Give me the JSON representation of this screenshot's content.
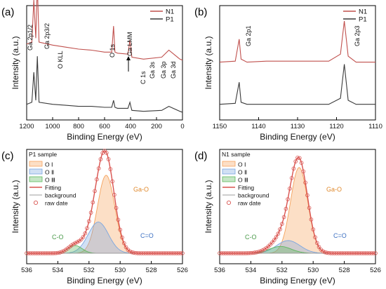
{
  "chart_data": [
    {
      "panel": "(a)",
      "type": "line",
      "xlabel": "Binding Energy (eV)",
      "ylabel": "Intensity (a.u.)",
      "xlim": [
        1200,
        0
      ],
      "x_reversed": true,
      "xticks": [
        1200,
        1000,
        800,
        600,
        400,
        200,
        0
      ],
      "grid": false,
      "legend": "top-right",
      "series": [
        {
          "name": "N1",
          "color": "#c0504d",
          "offset": 0.52,
          "x": [
            1200,
            1160,
            1145,
            1130,
            1118,
            1105,
            1000,
            900,
            800,
            700,
            600,
            545,
            531,
            520,
            500,
            420,
            405,
            398,
            390,
            300,
            160,
            105,
            20,
            0
          ],
          "y": [
            0.18,
            0.2,
            0.62,
            0.24,
            0.78,
            0.2,
            0.17,
            0.15,
            0.13,
            0.12,
            0.1,
            0.1,
            0.36,
            0.1,
            0.09,
            0.08,
            0.22,
            0.14,
            0.05,
            0.03,
            0.05,
            0.12,
            0.03,
            0.02
          ]
        },
        {
          "name": "P1",
          "color": "#3a3a3a",
          "offset": 0.0,
          "x": [
            1200,
            1160,
            1145,
            1130,
            1118,
            1105,
            1000,
            900,
            800,
            700,
            600,
            545,
            531,
            520,
            500,
            420,
            405,
            398,
            390,
            300,
            160,
            105,
            20,
            0
          ],
          "y": [
            0.1,
            0.12,
            0.42,
            0.14,
            0.58,
            0.12,
            0.1,
            0.09,
            0.08,
            0.08,
            0.07,
            0.07,
            0.14,
            0.07,
            0.06,
            0.06,
            0.12,
            0.08,
            0.04,
            0.03,
            0.04,
            0.08,
            0.03,
            0.02
          ]
        }
      ],
      "annotations": [
        "Ga 2p1/2",
        "Ga 2p3/2",
        "O KLL",
        "O 1s",
        "Ga LMM",
        "C 1s",
        "Ga 3s",
        "Ga 3p",
        "Ga 3d"
      ]
    },
    {
      "panel": "(b)",
      "type": "line",
      "xlabel": "Binding Energy (eV)",
      "ylabel": "Intensity (a.u.)",
      "xlim": [
        1150,
        1110
      ],
      "x_reversed": true,
      "xticks": [
        1150,
        1140,
        1130,
        1120,
        1110
      ],
      "grid": false,
      "legend": "top-right",
      "series": [
        {
          "name": "N1",
          "color": "#c0504d",
          "x": [
            1150,
            1146,
            1145,
            1144.5,
            1143,
            1138,
            1130,
            1122,
            1119,
            1118,
            1117,
            1115,
            1110
          ],
          "y": [
            0.52,
            0.53,
            0.75,
            0.55,
            0.52,
            0.53,
            0.53,
            0.53,
            0.6,
            0.93,
            0.58,
            0.52,
            0.52
          ]
        },
        {
          "name": "P1",
          "color": "#3a3a3a",
          "x": [
            1150,
            1146,
            1145,
            1144.5,
            1143,
            1138,
            1130,
            1122,
            1119,
            1118,
            1117,
            1115,
            1110
          ],
          "y": [
            0.1,
            0.11,
            0.32,
            0.12,
            0.1,
            0.1,
            0.1,
            0.1,
            0.16,
            0.5,
            0.14,
            0.1,
            0.1
          ]
        }
      ],
      "annotations": [
        "Ga 2p1",
        "Ga 2p3"
      ]
    },
    {
      "panel": "(c)",
      "type": "line",
      "sample_label": "P1 sample",
      "xlabel": "Binding Energy (eV)",
      "ylabel": "Intensity (a.u.)",
      "xlim": [
        536,
        526
      ],
      "x_reversed": true,
      "xticks": [
        536,
        534,
        532,
        530,
        528,
        526
      ],
      "grid": false,
      "legend": "top-left",
      "baseline": 0.05,
      "components": [
        {
          "name": "O Ⅰ",
          "center": 530.9,
          "sigma": 0.55,
          "height": 0.8,
          "color": "#f5a25d"
        },
        {
          "name": "O Ⅱ",
          "center": 531.4,
          "sigma": 0.65,
          "height": 0.32,
          "color": "#7aa6e0"
        },
        {
          "name": "O Ⅲ",
          "center": 532.9,
          "sigma": 0.45,
          "height": 0.08,
          "color": "#5cb85c"
        }
      ],
      "fitting_color": "#d9534f",
      "background_color": "#9e9e9e",
      "raw_color": "#d9534f",
      "legend_entries": [
        "O Ⅰ",
        "O Ⅱ",
        "O Ⅲ",
        "Fitting",
        "background",
        "raw date"
      ],
      "annotations": [
        "Ga-O",
        "C-O",
        "C=O"
      ]
    },
    {
      "panel": "(d)",
      "type": "line",
      "sample_label": "N1 sample",
      "xlabel": "Binding Energy (eV)",
      "ylabel": "Intensity (a.u.)",
      "xlim": [
        536,
        526
      ],
      "x_reversed": true,
      "xticks": [
        536,
        534,
        532,
        530,
        528,
        526
      ],
      "grid": false,
      "legend": "top-left",
      "baseline": 0.05,
      "components": [
        {
          "name": "O Ⅰ",
          "center": 530.9,
          "sigma": 0.55,
          "height": 0.88,
          "color": "#f5a25d"
        },
        {
          "name": "O Ⅱ",
          "center": 531.6,
          "sigma": 0.75,
          "height": 0.13,
          "color": "#7aa6e0"
        },
        {
          "name": "O Ⅲ",
          "center": 532.1,
          "sigma": 0.7,
          "height": 0.07,
          "color": "#5cb85c"
        }
      ],
      "fitting_color": "#d9534f",
      "background_color": "#9e9e9e",
      "raw_color": "#d9534f",
      "legend_entries": [
        "O Ⅰ",
        "O Ⅱ",
        "O Ⅲ",
        "Fitting",
        "background",
        "raw date"
      ],
      "annotations": [
        "Ga-O",
        "C-O",
        "C=O"
      ]
    }
  ]
}
